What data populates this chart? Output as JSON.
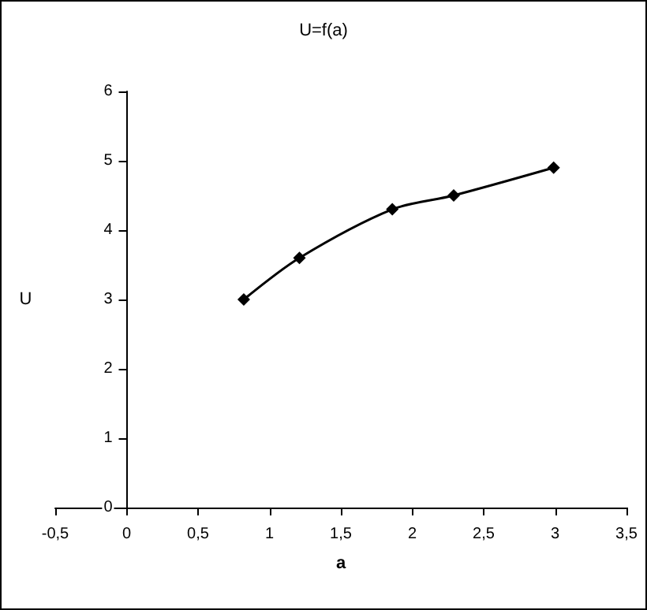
{
  "chart_data": {
    "type": "line",
    "title": "U=f(a)",
    "xlabel": "a",
    "ylabel": "U",
    "x": [
      0.82,
      1.21,
      1.86,
      2.29,
      2.99
    ],
    "series": [
      {
        "color": "#000000",
        "values": [
          3.0,
          3.6,
          4.3,
          4.5,
          4.9
        ]
      }
    ],
    "xlim": [
      -0.5,
      3.5
    ],
    "xticks": [
      {
        "value": -0.5,
        "label": "-0,5"
      },
      0,
      {
        "value": 0.5,
        "label": "0,5"
      },
      1,
      {
        "value": 1.5,
        "label": "1,5"
      },
      2,
      {
        "value": 2.5,
        "label": "2,5"
      },
      3,
      {
        "value": 3.5,
        "label": "3,5"
      }
    ],
    "ylim": [
      0,
      6
    ],
    "yticks": [
      0,
      1,
      2,
      3,
      4,
      5,
      6
    ],
    "grid": false,
    "marker": "diamond",
    "line_style": "solid"
  }
}
